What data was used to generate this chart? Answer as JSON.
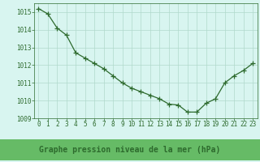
{
  "x": [
    0,
    1,
    2,
    3,
    4,
    5,
    6,
    7,
    8,
    9,
    10,
    11,
    12,
    13,
    14,
    15,
    16,
    17,
    18,
    19,
    20,
    21,
    22,
    23
  ],
  "y": [
    1015.2,
    1014.9,
    1014.1,
    1013.7,
    1012.7,
    1012.4,
    1012.1,
    1011.8,
    1011.4,
    1011.0,
    1010.7,
    1010.5,
    1010.3,
    1010.1,
    1009.8,
    1009.75,
    1009.35,
    1009.35,
    1009.85,
    1010.1,
    1011.0,
    1011.4,
    1011.7,
    1012.1
  ],
  "line_color": "#2d6a2d",
  "marker": "+",
  "marker_size": 4,
  "marker_color": "#2d6a2d",
  "bg_color": "#d8f5f0",
  "grid_color": "#b0d9cc",
  "xlabel": "Graphe pression niveau de la mer (hPa)",
  "xlabel_color": "#2d6a2d",
  "xlabel_bg": "#66bb66",
  "ylim": [
    1009.0,
    1015.5
  ],
  "yticks": [
    1009,
    1010,
    1011,
    1012,
    1013,
    1014,
    1015
  ],
  "xtick_labels": [
    "0",
    "1",
    "2",
    "3",
    "4",
    "5",
    "6",
    "7",
    "8",
    "9",
    "10",
    "11",
    "12",
    "13",
    "14",
    "15",
    "16",
    "17",
    "18",
    "19",
    "20",
    "21",
    "22",
    "23"
  ],
  "tick_color": "#2d6a2d",
  "tick_fontsize": 5.5,
  "xlabel_fontsize": 7.0,
  "spine_color": "#2d6a2d"
}
